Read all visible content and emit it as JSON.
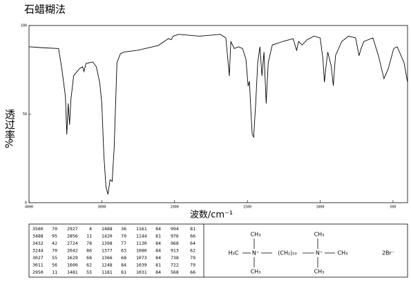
{
  "chart_data": {
    "type": "line",
    "title": "石蜡糊法",
    "xlabel": "波数/cm⁻¹",
    "ylabel": "透过率",
    "ylabel_unit": "%",
    "xlim": [
      4000,
      400
    ],
    "x_break": 2000,
    "x_break_ratio": 2,
    "ylim": [
      0,
      100
    ],
    "xticks": [
      4000,
      3000,
      2000,
      1500,
      1000,
      500
    ],
    "yticks": [
      0,
      50,
      100
    ],
    "grid": false,
    "color": "#000000",
    "x": [
      4000,
      3830,
      3594,
      3547,
      3500,
      3481,
      3462,
      3443,
      3425,
      3387,
      3311,
      3264,
      3245,
      3217,
      3123,
      3075,
      3028,
      3000,
      2972,
      2943,
      2915,
      2887,
      2858,
      2830,
      2792,
      2745,
      2698,
      2509,
      2226,
      2085,
      2047,
      2019,
      1971,
      1829,
      1686,
      1648,
      1624,
      1614,
      1590,
      1562,
      1533,
      1510,
      1495,
      1486,
      1476,
      1467,
      1457,
      1443,
      1429,
      1414,
      1400,
      1386,
      1371,
      1357,
      1329,
      1257,
      1186,
      1162,
      1148,
      1124,
      1090,
      1043,
      1000,
      981,
      971,
      962,
      948,
      924,
      910,
      895,
      852,
      805,
      757,
      733,
      719,
      700,
      638,
      600,
      562,
      533,
      495,
      471,
      424,
      400
    ],
    "values": [
      88,
      87.5,
      87,
      75,
      60,
      38.5,
      56,
      44,
      58,
      71.6,
      75.5,
      76.7,
      74,
      78.6,
      79.4,
      76.7,
      67.7,
      56,
      27,
      9,
      4.7,
      13,
      12,
      31,
      79,
      84,
      85,
      86,
      88.7,
      92.6,
      92,
      94,
      95,
      94,
      95,
      93,
      71.6,
      91,
      87,
      88,
      87,
      81,
      65.8,
      68.5,
      52,
      38.5,
      37,
      56,
      79,
      88,
      71.6,
      85,
      56,
      79,
      89,
      91,
      92.6,
      86,
      91,
      89,
      92,
      94,
      93,
      81,
      68,
      75.5,
      85,
      77,
      66,
      83,
      91,
      94,
      93,
      83,
      87,
      91,
      93,
      83,
      70,
      75.5,
      87,
      88,
      79,
      68
    ]
  },
  "peak_table": {
    "columns": [
      [
        [
          "3560",
          "70"
        ],
        [
          "3488",
          "95"
        ],
        [
          "3432",
          "42"
        ],
        [
          "3244",
          "70"
        ],
        [
          "3027",
          "55"
        ],
        [
          "3011",
          "56"
        ],
        [
          "2950",
          "11"
        ]
      ],
      [
        [
          "2927",
          "4"
        ],
        [
          "2856",
          "11"
        ],
        [
          "2724",
          "78"
        ],
        [
          "2042",
          "86"
        ],
        [
          "1629",
          "68"
        ],
        [
          "1600",
          "62"
        ],
        [
          "1481",
          "55"
        ]
      ],
      [
        [
          "1488",
          "36"
        ],
        [
          "1420",
          "70"
        ],
        [
          "1398",
          "77"
        ],
        [
          "1377",
          "63"
        ],
        [
          "1366",
          "68"
        ],
        [
          "1248",
          "84"
        ],
        [
          "1181",
          "81"
        ]
      ],
      [
        [
          "1161",
          "84"
        ],
        [
          "1144",
          "81"
        ],
        [
          "1130",
          "84"
        ],
        [
          "1080",
          "84"
        ],
        [
          "1073",
          "84"
        ],
        [
          "1039",
          "81"
        ],
        [
          "1031",
          "84"
        ]
      ],
      [
        [
          "994",
          "81"
        ],
        [
          "976",
          "66"
        ],
        [
          "968",
          "64"
        ],
        [
          "913",
          "62"
        ],
        [
          "738",
          "79"
        ],
        [
          "722",
          "79"
        ],
        [
          "568",
          "66"
        ]
      ]
    ]
  },
  "structure": {
    "top_left": "CH₃",
    "left": "H₃C",
    "n1": "N⁺",
    "bottom_left": "CH₃",
    "chain": "(CH₂)₁₀",
    "n2": "N⁺",
    "top_right": "CH₃",
    "right": "CH₃",
    "bottom_right": "CH₃",
    "counterion": "2Br⁻"
  }
}
